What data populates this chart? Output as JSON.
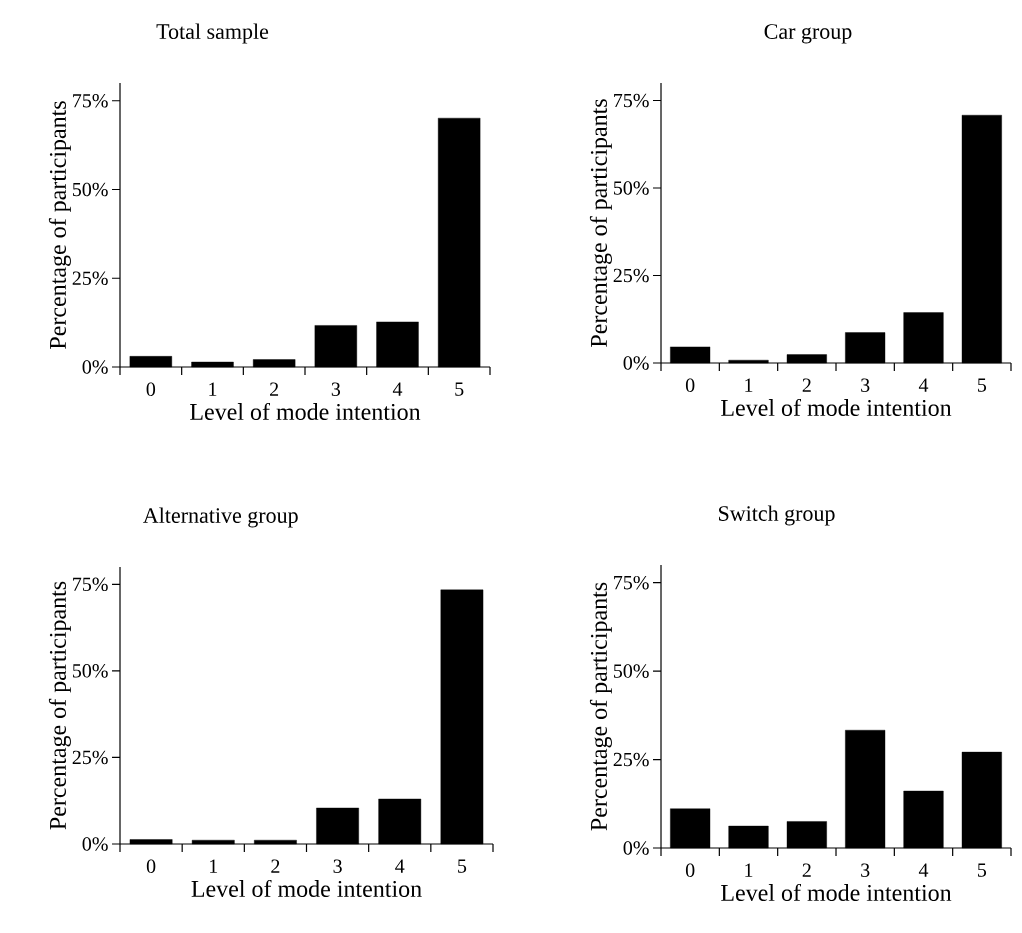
{
  "chart_data": [
    {
      "type": "bar",
      "title": "Total sample",
      "xlabel": "Level of mode intention",
      "ylabel": "Percentage of participants",
      "categories": [
        "0",
        "1",
        "2",
        "3",
        "4",
        "5"
      ],
      "values": [
        3.0,
        1.4,
        2.1,
        11.7,
        12.7,
        70.1
      ],
      "color": "#000000",
      "ylim": [
        0,
        80
      ],
      "yticks": [
        {
          "value": 0,
          "label": "0%"
        },
        {
          "value": 25,
          "label": "25%"
        },
        {
          "value": 50,
          "label": "50%"
        },
        {
          "value": 75,
          "label": "75%"
        }
      ]
    },
    {
      "type": "bar",
      "title": "Car group",
      "xlabel": "Level of mode intention",
      "ylabel": "Percentage of participants",
      "categories": [
        "0",
        "1",
        "2",
        "3",
        "4",
        "5"
      ],
      "values": [
        4.6,
        0.8,
        2.4,
        8.7,
        14.4,
        70.8
      ],
      "color": "#000000",
      "ylim": [
        0,
        80
      ],
      "yticks": [
        {
          "value": 0,
          "label": "0%"
        },
        {
          "value": 25,
          "label": "25%"
        },
        {
          "value": 50,
          "label": "50%"
        },
        {
          "value": 75,
          "label": "75%"
        }
      ]
    },
    {
      "type": "bar",
      "title": "Alternative group",
      "xlabel": "Level of mode intention",
      "ylabel": "Percentage of participants",
      "categories": [
        "0",
        "1",
        "2",
        "3",
        "4",
        "5"
      ],
      "values": [
        1.3,
        1.1,
        1.1,
        10.4,
        13.0,
        73.4
      ],
      "color": "#000000",
      "ylim": [
        0,
        80
      ],
      "yticks": [
        {
          "value": 0,
          "label": "0%"
        },
        {
          "value": 25,
          "label": "25%"
        },
        {
          "value": 50,
          "label": "50%"
        },
        {
          "value": 75,
          "label": "75%"
        }
      ]
    },
    {
      "type": "bar",
      "title": "Switch group",
      "xlabel": "Level of mode intention",
      "ylabel": "Percentage of participants",
      "categories": [
        "0",
        "1",
        "2",
        "3",
        "4",
        "5"
      ],
      "values": [
        11.1,
        6.2,
        7.5,
        33.3,
        16.1,
        27.1
      ],
      "color": "#000000",
      "ylim": [
        0,
        80
      ],
      "yticks": [
        {
          "value": 0,
          "label": "0%"
        },
        {
          "value": 25,
          "label": "25%"
        },
        {
          "value": 50,
          "label": "50%"
        },
        {
          "value": 75,
          "label": "75%"
        }
      ]
    }
  ]
}
